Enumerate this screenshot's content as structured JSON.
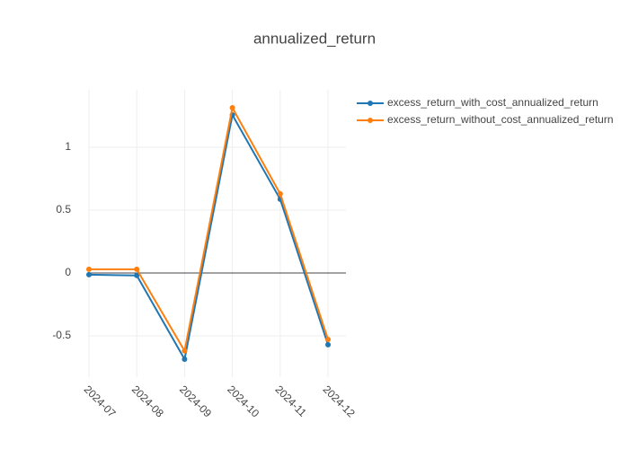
{
  "chart_data": {
    "type": "line",
    "title": "annualized_return",
    "categories": [
      "2024-07",
      "2024-08",
      "2024-09",
      "2024-10",
      "2024-11",
      "2024-12"
    ],
    "series": [
      {
        "name": "excess_return_with_cost_annualized_return",
        "color": "#1f77b4",
        "values": [
          -0.014,
          -0.02,
          -0.686,
          1.257,
          0.586,
          -0.571
        ]
      },
      {
        "name": "excess_return_without_cost_annualized_return",
        "color": "#ff7f0e",
        "values": [
          0.029,
          0.029,
          -0.62,
          1.314,
          0.629,
          -0.529
        ]
      }
    ],
    "ylim": [
      -0.829,
      1.457
    ],
    "yticks": [
      -0.5,
      0,
      0.5,
      1
    ],
    "grid": true,
    "legend": "right"
  }
}
